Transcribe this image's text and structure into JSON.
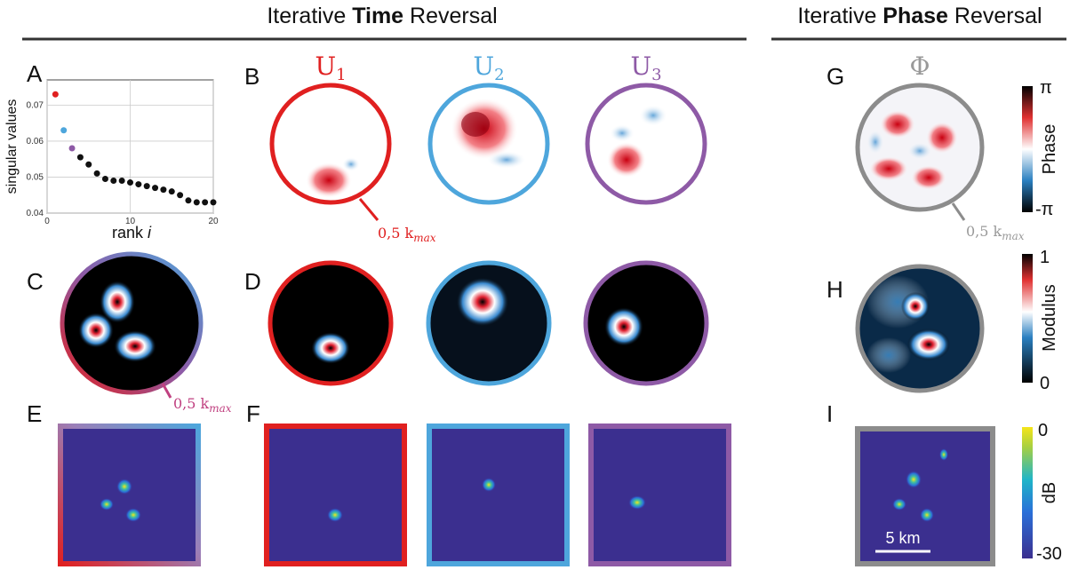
{
  "headers": {
    "time": {
      "pre": "Iterative ",
      "bold": "Time",
      "post": " Reversal"
    },
    "phase": {
      "pre": "Iterative ",
      "bold": "Phase",
      "post": " Reversal"
    }
  },
  "panel_labels": [
    "A",
    "B",
    "C",
    "D",
    "E",
    "F",
    "G",
    "H",
    "I"
  ],
  "chart_data": {
    "type": "scatter",
    "ylabel": "singular values",
    "xlabel": "rank ",
    "xlabel_italic": "i",
    "x": [
      1,
      2,
      3,
      4,
      5,
      6,
      7,
      8,
      9,
      10,
      11,
      12,
      13,
      14,
      15,
      16,
      17,
      18,
      19,
      20
    ],
    "values": [
      0.073,
      0.063,
      0.058,
      0.0555,
      0.0535,
      0.051,
      0.0495,
      0.049,
      0.049,
      0.0485,
      0.048,
      0.0475,
      0.047,
      0.0465,
      0.046,
      0.045,
      0.0435,
      0.043,
      0.043,
      0.043
    ],
    "point_colors": [
      "#e02020",
      "#4ea6dc",
      "#8e5aa6",
      "#111111",
      "#111111",
      "#111111",
      "#111111",
      "#111111",
      "#111111",
      "#111111",
      "#111111",
      "#111111",
      "#111111",
      "#111111",
      "#111111",
      "#111111",
      "#111111",
      "#111111",
      "#111111",
      "#111111"
    ],
    "xlim": [
      0,
      20
    ],
    "ylim": [
      0.04,
      0.077
    ],
    "xticks": [
      0,
      10,
      20
    ],
    "yticks": [
      0.04,
      0.05,
      0.06,
      0.07
    ],
    "grid": true
  },
  "mode_titles": [
    {
      "letter": "U",
      "sub": "1"
    },
    {
      "letter": "U",
      "sub": "2"
    },
    {
      "letter": "U",
      "sub": "3"
    }
  ],
  "phi_title": "Φ",
  "kmax_labels": [
    {
      "main": "0,5 k",
      "sub": "max"
    },
    {
      "main": "0,5 k",
      "sub": "max"
    },
    {
      "main": "0,5 k",
      "sub": "max"
    }
  ],
  "colorbars": {
    "phase": {
      "top": "π",
      "bottom": "-π",
      "label": "Phase"
    },
    "modulus": {
      "top": "1",
      "bottom": "0",
      "label": "Modulus"
    },
    "db": {
      "top": "0",
      "bottom": "-30",
      "label": "dB"
    }
  },
  "scale_bar": "5 km"
}
